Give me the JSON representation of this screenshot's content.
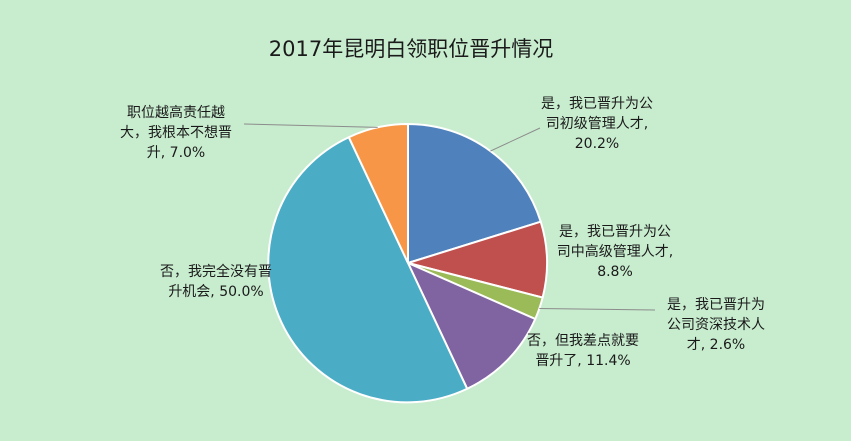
{
  "chart_data": {
    "type": "pie",
    "title": "2017年昆明白领职位晋升情况",
    "start_angle_deg": 0,
    "direction": "clockwise",
    "slices": [
      {
        "label_lines": [
          "是，我已晋升为公",
          "司初级管理人才,",
          "20.2%"
        ],
        "value": 20.2,
        "color": "#4f81bd"
      },
      {
        "label_lines": [
          "是，我已晋升为公",
          "司中高级管理人才,",
          "8.8%"
        ],
        "value": 8.8,
        "color": "#c0504d"
      },
      {
        "label_lines": [
          "是，我已晋升为",
          "公司资深技术人",
          "才, 2.6%"
        ],
        "value": 2.6,
        "color": "#9bbb59"
      },
      {
        "label_lines": [
          "否，但我差点就要",
          "晋升了, 11.4%"
        ],
        "value": 11.4,
        "color": "#8064a2"
      },
      {
        "label_lines": [
          "否，我完全没有晋",
          "升机会, 50.0%"
        ],
        "value": 50.0,
        "color": "#4bacc6"
      },
      {
        "label_lines": [
          "职位越高责任越",
          "大，我根本不想晋",
          "升, 7.0%"
        ],
        "value": 7.0,
        "color": "#f79646"
      }
    ]
  }
}
